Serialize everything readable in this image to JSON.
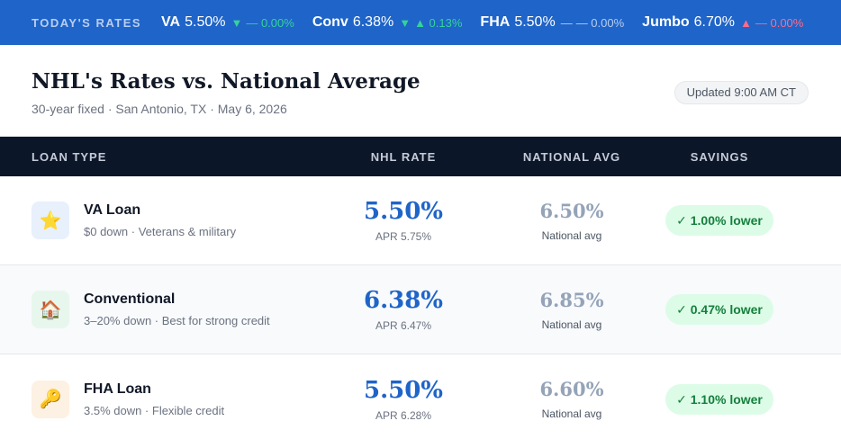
{
  "ticker": {
    "label": "TODAY'S RATES",
    "items": [
      {
        "name": "VA",
        "rate": "5.50%",
        "arrow": "▼",
        "change": "— 0.00%"
      },
      {
        "name": "Conv",
        "rate": "6.38%",
        "arrow": "▼",
        "change": "▲ 0.13%"
      },
      {
        "name": "FHA",
        "rate": "5.50%",
        "arrow": "—",
        "change": "— 0.00%"
      },
      {
        "name": "Jumbo",
        "rate": "6.70%",
        "arrow": "▲",
        "change": "— 0.00%"
      }
    ]
  },
  "header": {
    "title": "NHL's Rates vs. National Average",
    "subtitle": "30-year fixed · San Antonio, TX · May 6, 2026",
    "updated": "Updated 9:00 AM CT"
  },
  "table": {
    "columns": [
      "LOAN TYPE",
      "NHL RATE",
      "NATIONAL AVG",
      "SAVINGS"
    ],
    "rows": [
      {
        "icon": "star-icon",
        "glyph": "⭐",
        "name": "VA Loan",
        "desc": "$0 down · Veterans & military",
        "rate": "5.50%",
        "apr": "APR 5.75%",
        "national": "6.50%",
        "national_label": "National avg",
        "savings": "✓ 1.00% lower"
      },
      {
        "icon": "house-icon",
        "glyph": "🏠",
        "name": "Conventional",
        "desc": "3–20% down · Best for strong credit",
        "rate": "6.38%",
        "apr": "APR 6.47%",
        "national": "6.85%",
        "national_label": "National avg",
        "savings": "✓ 0.47% lower"
      },
      {
        "icon": "key-icon",
        "glyph": "🔑",
        "name": "FHA Loan",
        "desc": "3.5% down · Flexible credit",
        "rate": "5.50%",
        "apr": "APR 6.28%",
        "national": "6.60%",
        "national_label": "National avg",
        "savings": "✓ 1.10% lower"
      }
    ]
  },
  "colors": {
    "ticker_bg": "#1f64c8",
    "table_head_bg": "#0b1629",
    "accent": "#1f64c8",
    "savings_bg": "#dcfce7",
    "savings_text": "#15803d"
  }
}
